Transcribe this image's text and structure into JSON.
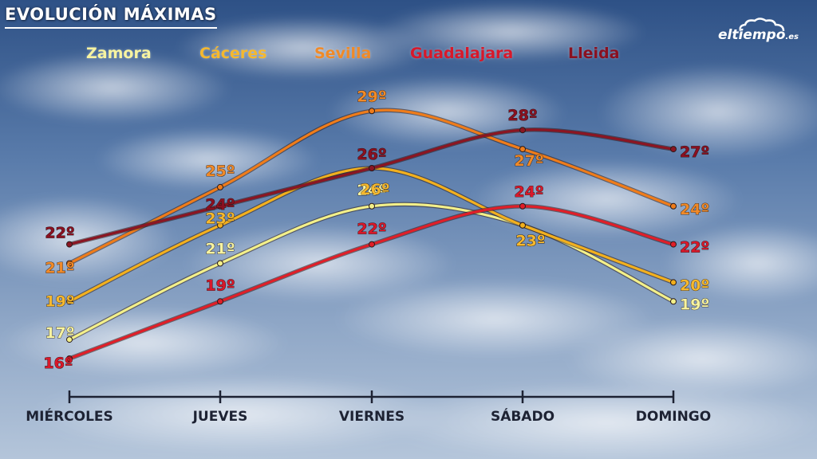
{
  "header": {
    "title": "EVOLUCIÓN MÁXIMAS",
    "logo_text": "eltiempo",
    "logo_ext": ".es"
  },
  "chart_data": {
    "type": "line",
    "title": "EVOLUCIÓN MÁXIMAS",
    "xlabel": "",
    "ylabel": "",
    "categories": [
      "MIÉRCOLES",
      "JUEVES",
      "VIERNES",
      "SÁBADO",
      "DOMINGO"
    ],
    "unit": "º",
    "ylim": [
      15,
      30
    ],
    "grid": false,
    "legend_position": "top",
    "series": [
      {
        "name": "Zamora",
        "color": "#f3f08a",
        "label_color": "#f7f3a0",
        "values": [
          17,
          21,
          24,
          23,
          19
        ]
      },
      {
        "name": "Cáceres",
        "color": "#f2b01e",
        "label_color": "#f5b82e",
        "values": [
          19,
          23,
          26,
          23,
          20
        ]
      },
      {
        "name": "Sevilla",
        "color": "#ef7c1a",
        "label_color": "#f08a28",
        "values": [
          21,
          25,
          29,
          27,
          24
        ]
      },
      {
        "name": "Guadalajara",
        "color": "#e01e28",
        "label_color": "#d8182a",
        "values": [
          16,
          19,
          22,
          24,
          22
        ]
      },
      {
        "name": "Lleida",
        "color": "#8b1522",
        "label_color": "#8a1020",
        "values": [
          22,
          24,
          26,
          28,
          27
        ]
      }
    ]
  }
}
